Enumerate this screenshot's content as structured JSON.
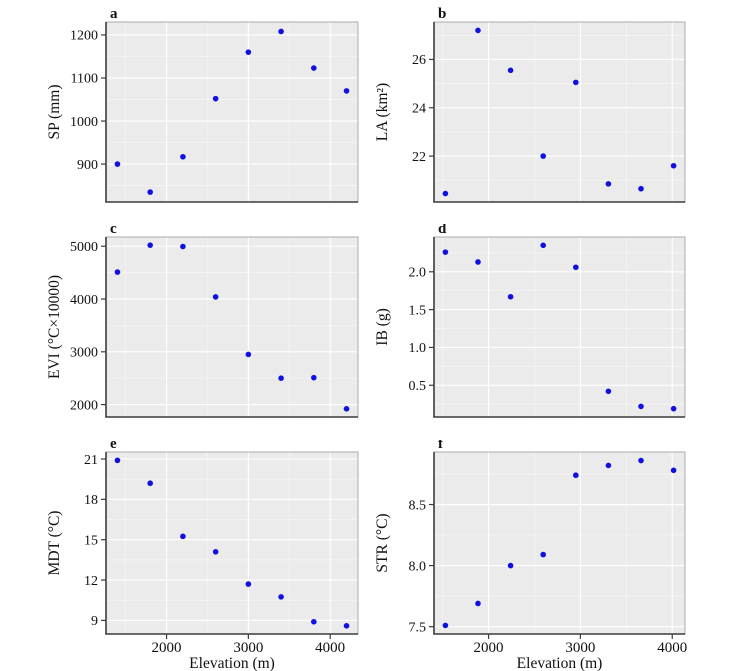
{
  "figure": {
    "description": "Six-panel scatter figure of variables versus elevation",
    "panel_letters": [
      "a",
      "b",
      "c",
      "d",
      "e",
      "f"
    ],
    "x_axis_title": "Elevation (m)"
  },
  "style": {
    "point_color": "#1010e0",
    "panel_background": "#ebebeb",
    "grid_major_color": "#ffffff",
    "grid_minor_color": "#ffffff",
    "panel_border_color": "#ababab",
    "axis_line_color": "#3b3b3b",
    "text_color": "#111111"
  },
  "chart_data": [
    {
      "type": "scatter",
      "panel": "a",
      "ylabel": "SP (mm)",
      "xlabel": "",
      "x": [
        1400,
        1800,
        2200,
        2600,
        3000,
        3400,
        3800,
        4200
      ],
      "y": [
        900,
        835,
        917,
        1052,
        1160,
        1208,
        1123,
        1070
      ],
      "xlim": [
        1260,
        4340
      ],
      "ylim": [
        812,
        1230
      ],
      "xticks": [
        2000,
        3000,
        4000
      ],
      "xtick_labels": [
        "2000",
        "3000",
        "4000"
      ],
      "xminor": [
        1500,
        2500,
        3500
      ],
      "yticks": [
        900,
        1000,
        1100,
        1200
      ],
      "ytick_labels": [
        "900",
        "1000",
        "1100",
        "1200"
      ],
      "yminor": [
        850,
        950,
        1050,
        1150
      ],
      "grid": true,
      "legend": false,
      "show_x_axis_labels": false
    },
    {
      "type": "scatter",
      "panel": "b",
      "ylabel": "LA (km²)",
      "xlabel": "",
      "x": [
        1530,
        1885,
        2240,
        2595,
        2950,
        3305,
        3660,
        4015
      ],
      "y": [
        20.45,
        27.2,
        25.55,
        22.0,
        25.05,
        20.85,
        20.65,
        21.6
      ],
      "xlim": [
        1406,
        4139
      ],
      "ylim": [
        20.1,
        27.55
      ],
      "xticks": [
        2000,
        3000,
        4000
      ],
      "xtick_labels": [
        "2000",
        "3000",
        "4000"
      ],
      "xminor": [
        1500,
        2500,
        3500
      ],
      "yticks": [
        22,
        24,
        26
      ],
      "ytick_labels": [
        "22",
        "24",
        "26"
      ],
      "yminor": [
        21,
        23,
        25,
        27
      ],
      "grid": true,
      "legend": false,
      "show_x_axis_labels": false
    },
    {
      "type": "scatter",
      "panel": "c",
      "ylabel": "EVI (°C×10000)",
      "xlabel": "",
      "x": [
        1400,
        1800,
        2200,
        2600,
        3000,
        3400,
        3800,
        4200
      ],
      "y": [
        4510,
        5020,
        4995,
        4040,
        2950,
        2500,
        2510,
        1920
      ],
      "xlim": [
        1260,
        4340
      ],
      "ylim": [
        1765,
        5175
      ],
      "xticks": [
        2000,
        3000,
        4000
      ],
      "xtick_labels": [
        "2000",
        "3000",
        "4000"
      ],
      "xminor": [
        1500,
        2500,
        3500
      ],
      "yticks": [
        2000,
        3000,
        4000,
        5000
      ],
      "ytick_labels": [
        "2000",
        "3000",
        "4000",
        "5000"
      ],
      "yminor": [
        2500,
        3500,
        4500
      ],
      "grid": true,
      "legend": false,
      "show_x_axis_labels": false
    },
    {
      "type": "scatter",
      "panel": "d",
      "ylabel": "IB (g)",
      "xlabel": "",
      "x": [
        1530,
        1885,
        2240,
        2595,
        2950,
        3305,
        3660,
        4015
      ],
      "y": [
        2.26,
        2.13,
        1.67,
        2.35,
        2.06,
        0.42,
        0.22,
        0.19
      ],
      "xlim": [
        1406,
        4139
      ],
      "ylim": [
        0.08,
        2.46
      ],
      "xticks": [
        2000,
        3000,
        4000
      ],
      "xtick_labels": [
        "2000",
        "3000",
        "4000"
      ],
      "xminor": [
        1500,
        2500,
        3500
      ],
      "yticks": [
        0.5,
        1.0,
        1.5,
        2.0
      ],
      "ytick_labels": [
        "0.5",
        "1.0",
        "1.5",
        "2.0"
      ],
      "yminor": [
        0.25,
        0.75,
        1.25,
        1.75,
        2.25
      ],
      "grid": true,
      "legend": false,
      "show_x_axis_labels": false
    },
    {
      "type": "scatter",
      "panel": "e",
      "ylabel": "MDT (°C)",
      "xlabel": "Elevation (m)",
      "x": [
        1400,
        1800,
        2200,
        2600,
        3000,
        3400,
        3800,
        4200
      ],
      "y": [
        20.9,
        19.2,
        15.25,
        14.1,
        11.7,
        10.75,
        8.9,
        8.6
      ],
      "xlim": [
        1260,
        4340
      ],
      "ylim": [
        7.99,
        21.52
      ],
      "xticks": [
        2000,
        3000,
        4000
      ],
      "xtick_labels": [
        "2000",
        "3000",
        "4000"
      ],
      "xminor": [
        1500,
        2500,
        3500
      ],
      "yticks": [
        9,
        12,
        15,
        18,
        21
      ],
      "ytick_labels": [
        "9",
        "12",
        "15",
        "18",
        "21"
      ],
      "yminor": [
        10.5,
        13.5,
        16.5,
        19.5
      ],
      "grid": true,
      "legend": false,
      "show_x_axis_labels": true
    },
    {
      "type": "scatter",
      "panel": "f",
      "ylabel": "STR (°C)",
      "xlabel": "Elevation (m)",
      "x": [
        1530,
        1885,
        2240,
        2595,
        2950,
        3305,
        3660,
        4015
      ],
      "y": [
        7.51,
        7.69,
        8.0,
        8.09,
        8.74,
        8.82,
        8.86,
        8.78
      ],
      "xlim": [
        1406,
        4139
      ],
      "ylim": [
        7.44,
        8.93
      ],
      "xticks": [
        2000,
        3000,
        4000
      ],
      "xtick_labels": [
        "2000",
        "3000",
        "4000"
      ],
      "xminor": [
        1500,
        2500,
        3500
      ],
      "yticks": [
        7.5,
        8.0,
        8.5
      ],
      "ytick_labels": [
        "7.5",
        "8.0",
        "8.5"
      ],
      "yminor": [
        7.75,
        8.25,
        8.75
      ],
      "grid": true,
      "legend": false,
      "show_x_axis_labels": true
    }
  ]
}
